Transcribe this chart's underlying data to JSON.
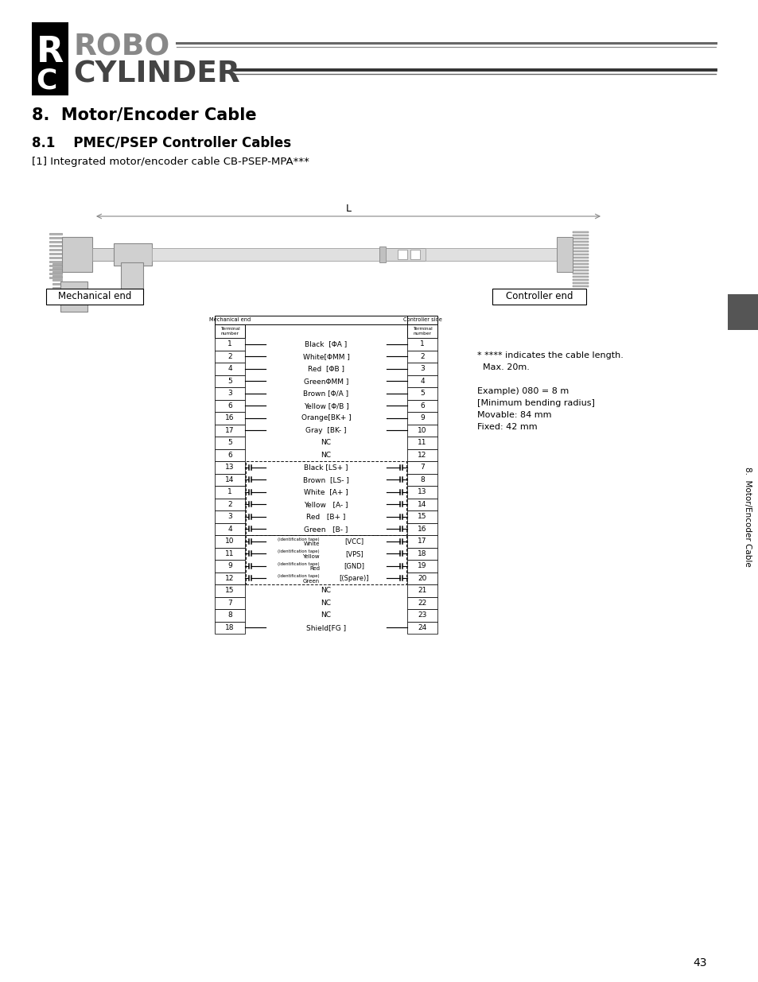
{
  "title_section": "8.  Motor/Encoder Cable",
  "subtitle": "8.1    PMEC/PSEP Controller Cables",
  "subtitle2": "[1] Integrated motor/encoder cable CB-PSEP-MPA***",
  "mech_end_label": "Mechanical end",
  "ctrl_end_label": "Controller end",
  "mech_header": "Mechanical end",
  "ctrl_header": "Controller side",
  "notes": [
    "* **** indicates the cable length.",
    "  Max. 20m.",
    "",
    "Example) 080 = 8 m",
    "[Minimum bending radius]",
    "Movable: 84 mm",
    "Fixed: 42 mm"
  ],
  "page_number": "43",
  "side_label": "8.  Motor/Encoder Cable",
  "rows": [
    {
      "mech": "1",
      "signal": "Black  [ΦA ]",
      "ctrl": "1",
      "type": "solid"
    },
    {
      "mech": "2",
      "signal": "White[ΦMM ]",
      "ctrl": "2",
      "type": "solid"
    },
    {
      "mech": "4",
      "signal": "Red  [ΦB ]",
      "ctrl": "3",
      "type": "solid"
    },
    {
      "mech": "5",
      "signal": "GreenΦMM ]",
      "ctrl": "4",
      "type": "solid"
    },
    {
      "mech": "3",
      "signal": "Brown [Φ/A ]",
      "ctrl": "5",
      "type": "solid"
    },
    {
      "mech": "6",
      "signal": "Yellow [Φ/B ]",
      "ctrl": "6",
      "type": "solid"
    },
    {
      "mech": "16",
      "signal": "Orange[BK+ ]",
      "ctrl": "9",
      "type": "solid"
    },
    {
      "mech": "17",
      "signal": "Gray  [BK- ]",
      "ctrl": "10",
      "type": "solid"
    },
    {
      "mech": "5",
      "signal": "NC",
      "ctrl": "11",
      "type": "nc"
    },
    {
      "mech": "6",
      "signal": "NC",
      "ctrl": "12",
      "type": "nc"
    },
    {
      "mech": "13",
      "signal": "Black [LS+ ]",
      "ctrl": "7",
      "type": "conn1"
    },
    {
      "mech": "14",
      "signal": "Brown  [LS- ]",
      "ctrl": "8",
      "type": "conn1"
    },
    {
      "mech": "1",
      "signal": "White  [A+ ]",
      "ctrl": "13",
      "type": "conn1"
    },
    {
      "mech": "2",
      "signal": "Yellow   [A- ]",
      "ctrl": "14",
      "type": "conn1"
    },
    {
      "mech": "3",
      "signal": "Red   [B+ ]",
      "ctrl": "15",
      "type": "conn1"
    },
    {
      "mech": "4",
      "signal": "Green   [B- ]",
      "ctrl": "16",
      "type": "conn1"
    },
    {
      "mech": "10",
      "signal": "White|(identification tape)|[VCC]",
      "ctrl": "17",
      "type": "conn2"
    },
    {
      "mech": "11",
      "signal": "Yellow|(identification tape)|[VPS]",
      "ctrl": "18",
      "type": "conn2"
    },
    {
      "mech": "9",
      "signal": "Red|(identification tape)|[GND]",
      "ctrl": "19",
      "type": "conn2"
    },
    {
      "mech": "12",
      "signal": "Green|(identification tape)|[(Spare)]",
      "ctrl": "20",
      "type": "conn2"
    },
    {
      "mech": "15",
      "signal": "NC",
      "ctrl": "21",
      "type": "nc"
    },
    {
      "mech": "7",
      "signal": "NC",
      "ctrl": "22",
      "type": "nc"
    },
    {
      "mech": "8",
      "signal": "NC",
      "ctrl": "23",
      "type": "nc"
    },
    {
      "mech": "18",
      "signal": "Shield[FG ]",
      "ctrl": "24",
      "type": "solid"
    }
  ],
  "bg_color": "#ffffff"
}
